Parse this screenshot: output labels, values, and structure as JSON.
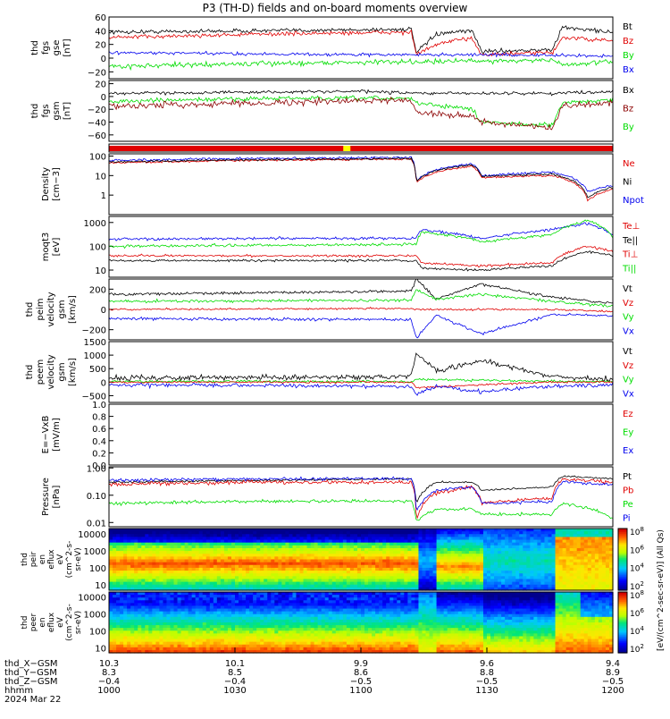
{
  "title": "P3 (TH-D) fields and on-board moments overview",
  "date_label": "2024 Mar 22",
  "colors": {
    "black": "#000000",
    "red": "#e00000",
    "green": "#00dd00",
    "blue": "#0000ee",
    "darkred": "#8b0000"
  },
  "chart_data": [
    {
      "type": "line",
      "panel": "fgs_gse",
      "ylabel": [
        "thd",
        "fgs",
        "gse",
        "[nT]"
      ],
      "ylim": [
        -30,
        60
      ],
      "yticks": [
        "60",
        "40",
        "20",
        "0",
        "−20"
      ],
      "legend": [
        "Bt",
        "Bz",
        "By",
        "Bx"
      ],
      "legend_colors": [
        "black",
        "red",
        "green",
        "blue"
      ]
    },
    {
      "type": "line",
      "panel": "fgs_gsm",
      "ylabel": [
        "thd",
        "fgs",
        "gsm",
        "[nT]"
      ],
      "ylim": [
        -70,
        25
      ],
      "yticks": [
        "20",
        "0",
        "−20",
        "−40",
        "−60"
      ],
      "legend": [
        "Bx",
        "Bz",
        "By"
      ],
      "legend_colors": [
        "black",
        "darkred",
        "green"
      ]
    },
    {
      "type": "bar",
      "panel": "mode_bar"
    },
    {
      "type": "line",
      "panel": "density",
      "ylabel": [
        "Density",
        "[cm−3]"
      ],
      "log": true,
      "ylim": [
        0.1,
        130
      ],
      "yticks": [
        "100",
        "10",
        "1"
      ],
      "legend": [
        "Ne",
        "Ni",
        "Npot"
      ],
      "legend_colors": [
        "red",
        "black",
        "blue"
      ]
    },
    {
      "type": "line",
      "panel": "temperature",
      "ylabel": [
        "moqt3",
        "[eV]"
      ],
      "log": true,
      "ylim": [
        5,
        1800
      ],
      "yticks": [
        "1000",
        "100",
        "10"
      ],
      "legend": [
        "Te⊥",
        "Te||",
        "Ti⊥",
        "Ti||"
      ],
      "legend_colors": [
        "red",
        "black",
        "red",
        "green"
      ]
    },
    {
      "type": "line",
      "panel": "peim_velocity",
      "ylabel": [
        "thd",
        "peim",
        "velocity",
        "gsm",
        "[km/s]"
      ],
      "ylim": [
        -300,
        300
      ],
      "yticks": [
        "200",
        "0",
        "−200"
      ],
      "legend": [
        "Vt",
        "Vz",
        "Vy",
        "Vx"
      ],
      "legend_colors": [
        "black",
        "red",
        "green",
        "blue"
      ]
    },
    {
      "type": "line",
      "panel": "peem_velocity",
      "ylabel": [
        "thd",
        "peem",
        "velocity",
        "gsm",
        "[km/s]"
      ],
      "ylim": [
        -750,
        1500
      ],
      "yticks": [
        "1500",
        "1000",
        "500",
        "0",
        "−500"
      ],
      "legend": [
        "Vt",
        "Vz",
        "Vy",
        "Vx"
      ],
      "legend_colors": [
        "black",
        "red",
        "green",
        "blue"
      ]
    },
    {
      "type": "line",
      "panel": "efield",
      "ylabel": [
        "E=−VxB",
        "[mV/m]"
      ],
      "ylim": [
        0,
        1
      ],
      "yticks": [
        "1.0",
        "0.8",
        "0.6",
        "0.4",
        "0.2",
        "0.0"
      ],
      "legend": [
        "Ez",
        "Ey",
        "Ex"
      ],
      "legend_colors": [
        "red",
        "green",
        "blue"
      ]
    },
    {
      "type": "line",
      "panel": "pressure",
      "ylabel": [
        "Pressure",
        "[nPa]"
      ],
      "log": true,
      "ylim": [
        0.007,
        1.1
      ],
      "yticks": [
        "1.00",
        "0.10",
        "0.01"
      ],
      "legend": [
        "Pt",
        "Pb",
        "Pe",
        "Pi"
      ],
      "legend_colors": [
        "black",
        "red",
        "green",
        "blue"
      ]
    },
    {
      "type": "heatmap",
      "panel": "peir_spec",
      "ylabel": [
        "thd",
        "peir",
        "en",
        "eflux",
        "eV",
        "(cm^2-s-",
        "sr-eV)"
      ],
      "log": true,
      "ylim": [
        5,
        20000
      ],
      "yticks": [
        "10000",
        "1000",
        "100",
        "10"
      ]
    },
    {
      "type": "heatmap",
      "panel": "peer_spec",
      "ylabel": [
        "thd",
        "peer",
        "en",
        "eflux",
        "eV",
        "(cm^2-s-",
        "sr-eV)"
      ],
      "log": true,
      "ylim": [
        5,
        20000
      ],
      "yticks": [
        "10000",
        "1000",
        "100",
        "10"
      ]
    },
    {
      "type": "colorbar",
      "label": "[eV/(cm^2-sec-sr-eV)] (All Qs)",
      "ticks": [
        "10^2",
        "10^4",
        "10^6",
        "10^8",
        "10^4",
        "10^6",
        "10^8"
      ]
    },
    {
      "type": "axis",
      "x_ticks": [
        "1000",
        "1030",
        "1100",
        "1130",
        "1200"
      ],
      "x_range": [
        1000,
        1200
      ],
      "rows": [
        {
          "label": "thd_X−GSM",
          "values": [
            "10.3",
            "10.1",
            "9.9",
            "9.6",
            "9.4"
          ]
        },
        {
          "label": "thd_Y−GSM",
          "values": [
            "8.3",
            "8.5",
            "8.6",
            "8.8",
            "8.9"
          ]
        },
        {
          "label": "thd_Z−GSM",
          "values": [
            "−0.4",
            "−0.4",
            "−0.5",
            "−0.5",
            "−0.5"
          ]
        },
        {
          "label": "hhmm",
          "values": [
            "1000",
            "1030",
            "1100",
            "1130",
            "1200"
          ]
        }
      ]
    }
  ]
}
